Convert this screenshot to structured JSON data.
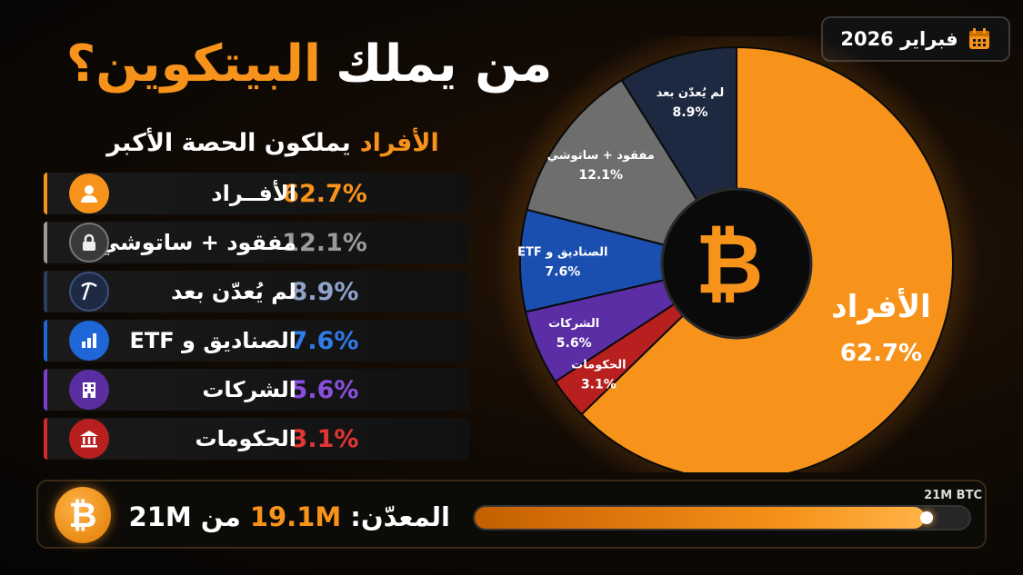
{
  "date": "فبراير 2026",
  "title": {
    "part1": "من يملك",
    "part2": "البيتكوين؟"
  },
  "subtitle": {
    "highlight": "الأفراد",
    "rest": "يملكون الحصة الأكبر"
  },
  "colors": {
    "individuals": "#f7931a",
    "lost": "#8a8a8a",
    "unmined": "#2b3f66",
    "funds": "#1f66d6",
    "companies": "#7b3fd0",
    "governments": "#d02a2a"
  },
  "rows": [
    {
      "label": "الأفــراد",
      "value": "62.7%",
      "icon": "person-icon",
      "color": "#f7931a"
    },
    {
      "label": "مفقود + ساتوشي",
      "value": "12.1%",
      "icon": "lock-icon",
      "color": "#9a9a9a"
    },
    {
      "label": "لم يُعدّن بعد",
      "value": "8.9%",
      "icon": "pickaxe-icon",
      "color": "#8fa2c8"
    },
    {
      "label": "الصناديق و ETF",
      "value": "7.6%",
      "icon": "bar-chart-icon",
      "color": "#2f7be8"
    },
    {
      "label": "الشركات",
      "value": "5.6%",
      "icon": "building-icon",
      "color": "#8a4fe0"
    },
    {
      "label": "الحكومات",
      "value": "3.1%",
      "icon": "bank-icon",
      "color": "#e03535"
    }
  ],
  "chart_data": {
    "type": "pie",
    "donut": true,
    "center_icon": "bitcoin-icon",
    "slices": [
      {
        "label": "الأفراد",
        "value": 62.7,
        "display": "62.7%",
        "color": "#f7931a"
      },
      {
        "label": "الحكومات",
        "value": 3.1,
        "display": "3.1%",
        "color": "#b82020"
      },
      {
        "label": "الشركات",
        "value": 5.6,
        "display": "5.6%",
        "color": "#5b2ea6"
      },
      {
        "label": "الصناديق و ETF",
        "value": 7.6,
        "display": "7.6%",
        "color": "#1a4fb0"
      },
      {
        "label": "مفقود + ساتوشي",
        "value": 12.1,
        "display": "12.1%",
        "color": "#6e6e6e"
      },
      {
        "label": "لم يُعدّن بعد",
        "value": 8.9,
        "display": "8.9%",
        "color": "#1d2940"
      }
    ]
  },
  "supply": {
    "label": "المعدّن:",
    "mined": "19.1M",
    "of": "من",
    "total": "21M",
    "cap_label": "21M BTC",
    "progress_fraction": 0.9095
  }
}
